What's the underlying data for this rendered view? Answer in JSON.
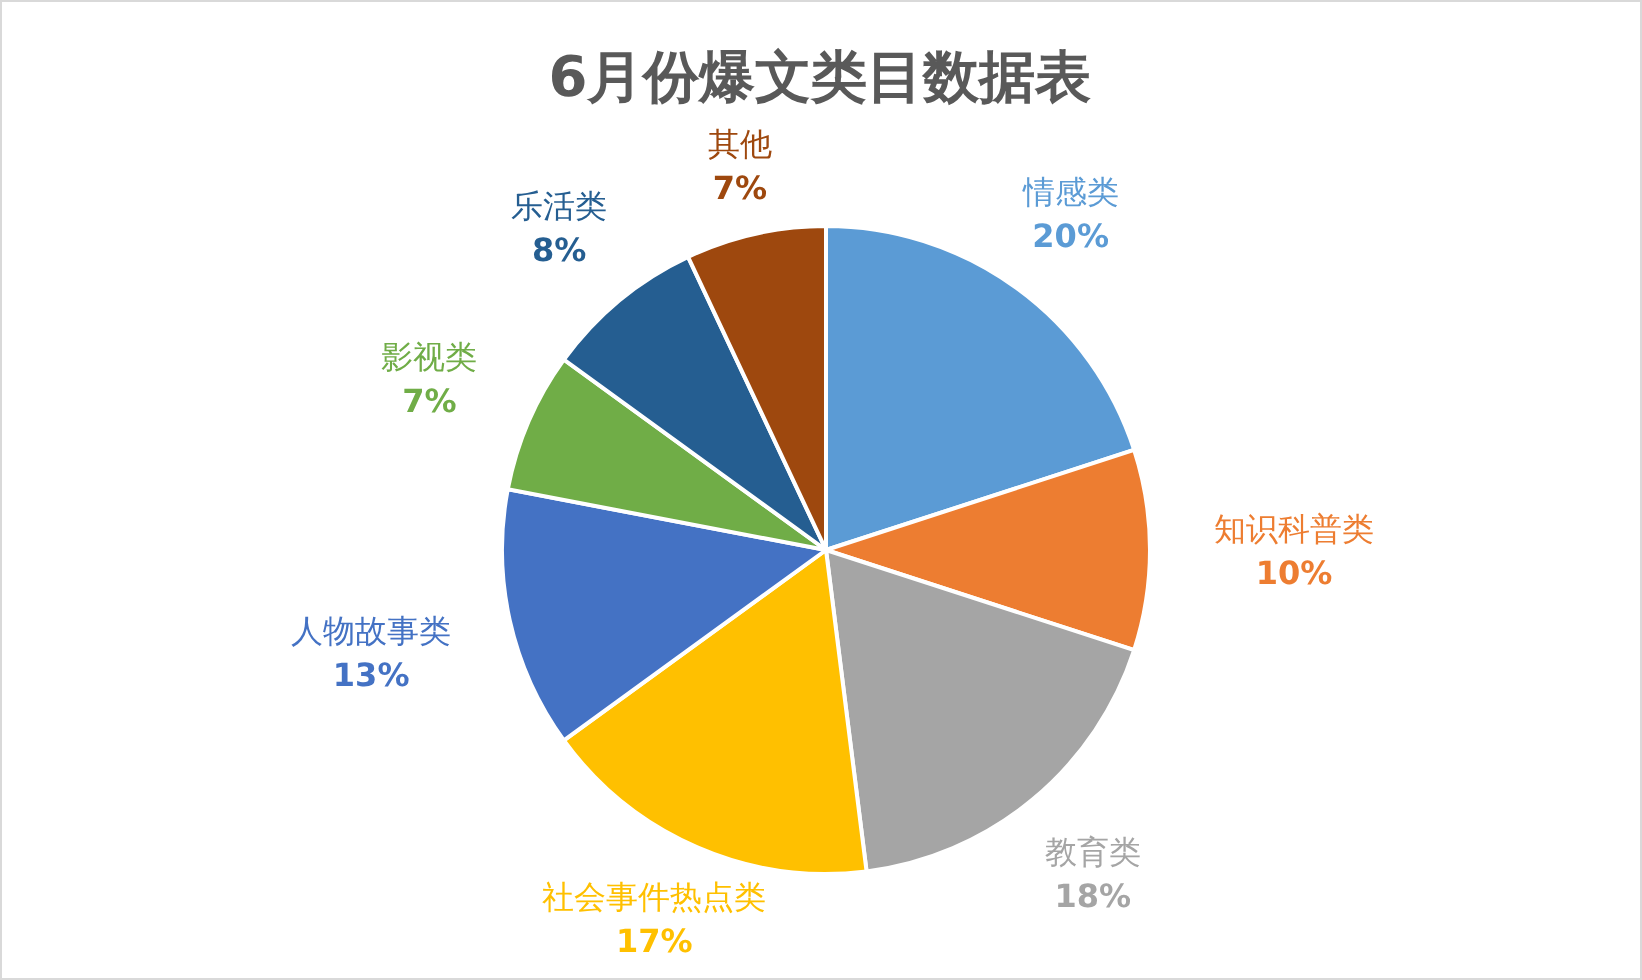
{
  "chart_data": {
    "type": "pie",
    "title": "6月份爆文类目数据表",
    "categories": [
      "情感类",
      "知识科普类",
      "教育类",
      "社会事件热点类",
      "人物故事类",
      "影视类",
      "乐活类",
      "其他"
    ],
    "values": [
      20,
      10,
      18,
      17,
      13,
      7,
      8,
      7
    ],
    "value_labels": [
      "20%",
      "10%",
      "18%",
      "17%",
      "13%",
      "7%",
      "8%",
      "7%"
    ],
    "colors": [
      "#5b9bd5",
      "#ed7d31",
      "#a5a5a5",
      "#ffc000",
      "#4472c4",
      "#70ad47",
      "#255e91",
      "#9e480e"
    ],
    "legend": false
  }
}
